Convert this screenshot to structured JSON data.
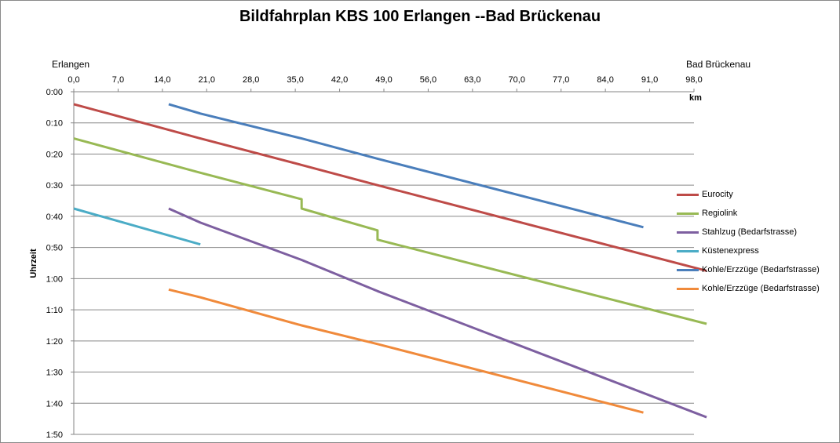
{
  "chart_data": {
    "type": "line",
    "title": "Bildfahrplan KBS 100 Erlangen --Bad Brückenau",
    "station_left": "Erlangen",
    "station_right": "Bad Brückenau",
    "xlabel": "km",
    "ylabel": "Uhrzeit",
    "x_axis_position": "top",
    "y_axis_inverted": true,
    "xlim": [
      0,
      98
    ],
    "ylim_minutes": [
      0,
      110
    ],
    "x_ticks": [
      "0,0",
      "7,0",
      "14,0",
      "21,0",
      "28,0",
      "35,0",
      "42,0",
      "49,0",
      "56,0",
      "63,0",
      "70,0",
      "77,0",
      "84,0",
      "91,0",
      "98,0"
    ],
    "y_ticks": [
      "0:00",
      "0:10",
      "0:20",
      "0:30",
      "0:40",
      "0:50",
      "1:00",
      "1:10",
      "1:20",
      "1:30",
      "1:40",
      "1:50"
    ],
    "grid": "horizontal",
    "legend_position": "right",
    "series": [
      {
        "name": "Eurocity",
        "color": "#be4b48",
        "points": [
          [
            0,
            4
          ],
          [
            20,
            15
          ],
          [
            36,
            23.5
          ],
          [
            48,
            30
          ],
          [
            100,
            57.5
          ]
        ]
      },
      {
        "name": "Regiolink",
        "color": "#98b954",
        "points": [
          [
            0,
            15
          ],
          [
            20,
            26
          ],
          [
            36,
            34.5
          ],
          [
            36,
            37.5
          ],
          [
            48,
            44.5
          ],
          [
            48,
            47.5
          ],
          [
            100,
            74.5
          ]
        ]
      },
      {
        "name": "Stahlzug (Bedarfstrasse)",
        "color": "#7d5fa0",
        "points": [
          [
            15,
            37.5
          ],
          [
            20,
            42
          ],
          [
            36,
            54
          ],
          [
            48,
            64
          ],
          [
            100,
            104.5
          ]
        ]
      },
      {
        "name": "Küstenexpress",
        "color": "#4bacc6",
        "points": [
          [
            0,
            37.5
          ],
          [
            20,
            49
          ]
        ]
      },
      {
        "name": "Kohle/Erzzüge (Bedarfstrasse)",
        "color": "#4a7ebb",
        "points": [
          [
            15,
            4
          ],
          [
            20,
            7
          ],
          [
            36,
            15
          ],
          [
            48,
            21.5
          ],
          [
            90,
            43.5
          ]
        ]
      },
      {
        "name": "Kohle/Erzzüge (Bedarfstrasse)",
        "color": "#f08a3b",
        "points": [
          [
            15,
            63.5
          ],
          [
            20,
            66
          ],
          [
            36,
            75
          ],
          [
            48,
            81
          ],
          [
            90,
            103
          ]
        ]
      }
    ]
  }
}
